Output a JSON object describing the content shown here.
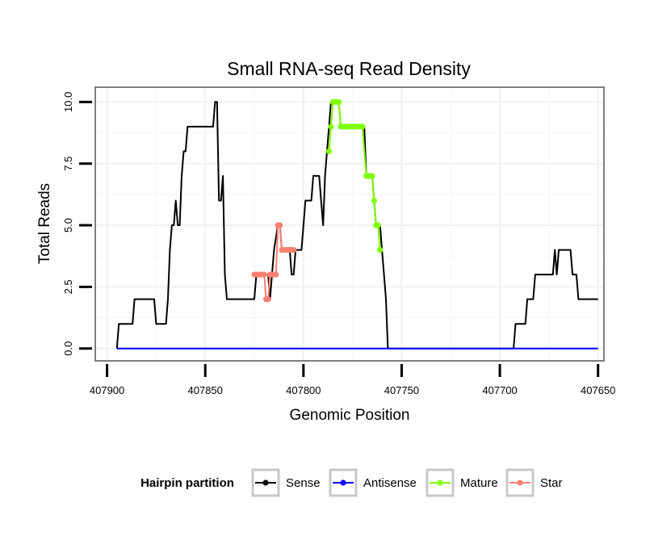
{
  "chart_data": {
    "type": "line",
    "title": "Small RNA-seq Read Density",
    "xlabel": "Genomic Position",
    "ylabel": "Total Reads",
    "xlim": [
      407906,
      407647
    ],
    "x_reversed": true,
    "ylim": [
      -0.5,
      10.6
    ],
    "x_ticks": [
      407900,
      407850,
      407800,
      407750,
      407700,
      407650
    ],
    "x_tick_labels": [
      "407900",
      "407850",
      "407800",
      "407750",
      "407700",
      "407650"
    ],
    "y_ticks": [
      0,
      2.5,
      5,
      7.5,
      10
    ],
    "y_tick_labels": [
      "0.0",
      "2.5",
      "5.0",
      "7.5",
      "10.0"
    ],
    "grid": true,
    "legend": {
      "title": "Hairpin partition",
      "position": "bottom",
      "entries": [
        {
          "name": "Sense",
          "color": "#000000"
        },
        {
          "name": "Antisense",
          "color": "#0000ff"
        },
        {
          "name": "Mature",
          "color": "#7fff00"
        },
        {
          "name": "Star",
          "color": "#fa8072"
        }
      ]
    },
    "series": [
      {
        "name": "Sense",
        "color": "#000000",
        "marker": false,
        "points": [
          [
            407895,
            0
          ],
          [
            407894,
            1
          ],
          [
            407887,
            1
          ],
          [
            407886,
            2
          ],
          [
            407876,
            2
          ],
          [
            407875,
            1
          ],
          [
            407870,
            1
          ],
          [
            407869,
            2
          ],
          [
            407868,
            4
          ],
          [
            407867,
            5
          ],
          [
            407866,
            5
          ],
          [
            407865,
            6
          ],
          [
            407864,
            5
          ],
          [
            407863,
            5
          ],
          [
            407862,
            7
          ],
          [
            407861,
            8
          ],
          [
            407860,
            8
          ],
          [
            407859,
            9
          ],
          [
            407846,
            9
          ],
          [
            407845,
            10
          ],
          [
            407844,
            10
          ],
          [
            407843,
            6
          ],
          [
            407842,
            6
          ],
          [
            407841,
            7
          ],
          [
            407840,
            3
          ],
          [
            407839,
            2
          ],
          [
            407825,
            2
          ],
          [
            407824,
            3
          ],
          [
            407818,
            3
          ],
          [
            407817,
            2
          ],
          [
            407816,
            3
          ],
          [
            407815,
            4
          ],
          [
            407813,
            5
          ],
          [
            407812,
            5
          ],
          [
            407811,
            4
          ],
          [
            407807,
            4
          ],
          [
            407806,
            3
          ],
          [
            407805,
            3
          ],
          [
            407804,
            4
          ],
          [
            407801,
            4
          ],
          [
            407799,
            6
          ],
          [
            407796,
            6
          ],
          [
            407795,
            7
          ],
          [
            407793,
            7
          ],
          [
            407792,
            7
          ],
          [
            407791,
            6
          ],
          [
            407790,
            5
          ],
          [
            407789,
            7
          ],
          [
            407788,
            8
          ],
          [
            407787,
            9
          ],
          [
            407786,
            10
          ],
          [
            407782,
            10
          ],
          [
            407781,
            9
          ],
          [
            407770,
            9
          ],
          [
            407769,
            9
          ],
          [
            407768,
            7
          ],
          [
            407765,
            7
          ],
          [
            407764,
            6
          ],
          [
            407763,
            5
          ],
          [
            407761,
            5
          ],
          [
            407760,
            4
          ],
          [
            407759,
            3
          ],
          [
            407758,
            2
          ],
          [
            407757,
            0
          ],
          [
            407693,
            0
          ],
          [
            407692,
            1
          ],
          [
            407687,
            1
          ],
          [
            407686,
            2
          ],
          [
            407683,
            2
          ],
          [
            407682,
            3
          ],
          [
            407673,
            3
          ],
          [
            407672,
            4
          ],
          [
            407671,
            3
          ],
          [
            407670,
            4
          ],
          [
            407664,
            4
          ],
          [
            407663,
            3
          ],
          [
            407661,
            3
          ],
          [
            407660,
            2
          ],
          [
            407650,
            2
          ]
        ]
      },
      {
        "name": "Antisense",
        "color": "#0000ff",
        "marker": false,
        "points": [
          [
            407895,
            0
          ],
          [
            407650,
            0
          ]
        ]
      },
      {
        "name": "Mature",
        "color": "#7fff00",
        "marker": true,
        "points": [
          [
            407787,
            8
          ],
          [
            407786,
            9
          ],
          [
            407785,
            10
          ],
          [
            407784,
            10
          ],
          [
            407783,
            10
          ],
          [
            407782,
            10
          ],
          [
            407781,
            9
          ],
          [
            407780,
            9
          ],
          [
            407779,
            9
          ],
          [
            407778,
            9
          ],
          [
            407777,
            9
          ],
          [
            407776,
            9
          ],
          [
            407775,
            9
          ],
          [
            407774,
            9
          ],
          [
            407773,
            9
          ],
          [
            407772,
            9
          ],
          [
            407771,
            9
          ],
          [
            407770,
            9
          ],
          [
            407768,
            7
          ],
          [
            407767,
            7
          ],
          [
            407766,
            7
          ],
          [
            407765,
            7
          ],
          [
            407764,
            6
          ],
          [
            407763,
            5
          ],
          [
            407762,
            5
          ],
          [
            407761,
            4
          ]
        ]
      },
      {
        "name": "Star",
        "color": "#fa8072",
        "marker": true,
        "points": [
          [
            407825,
            3
          ],
          [
            407824,
            3
          ],
          [
            407823,
            3
          ],
          [
            407822,
            3
          ],
          [
            407821,
            3
          ],
          [
            407820,
            3
          ],
          [
            407819,
            2
          ],
          [
            407818,
            2
          ],
          [
            407817,
            3
          ],
          [
            407816,
            3
          ],
          [
            407815,
            3
          ],
          [
            407814,
            3
          ],
          [
            407813,
            5
          ],
          [
            407812,
            5
          ],
          [
            407811,
            4
          ],
          [
            407810,
            4
          ],
          [
            407809,
            4
          ],
          [
            407808,
            4
          ],
          [
            407807,
            4
          ],
          [
            407806,
            4
          ],
          [
            407805,
            4
          ]
        ]
      }
    ]
  }
}
